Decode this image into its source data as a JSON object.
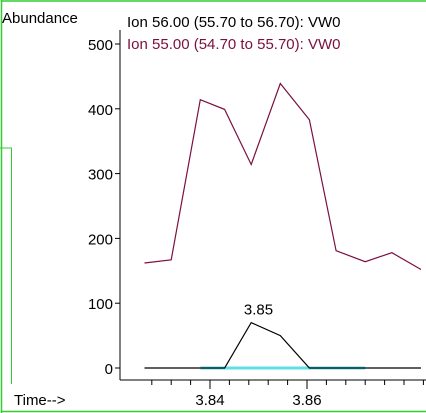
{
  "chart_data": {
    "type": "line",
    "ylabel": "Abundance",
    "xlabel": "Time-->",
    "xlim": [
      3.825,
      3.885
    ],
    "ylim": [
      -5,
      510
    ],
    "x_ticks": [
      3.84,
      3.86
    ],
    "y_ticks": [
      0,
      100,
      200,
      300,
      400,
      500
    ],
    "legend_position": "top",
    "peak_annotation": {
      "x": 3.85,
      "y": 70,
      "label": "3.85"
    },
    "series": [
      {
        "name": "Ion  56.00 (55.70 to 56.70): VW0",
        "color": "#000000",
        "x": [
          3.8265,
          3.838,
          3.843,
          3.8485,
          3.8545,
          3.8605,
          3.866,
          3.872,
          3.8775,
          3.8835
        ],
        "y": [
          0,
          0,
          0,
          70,
          50,
          0,
          0,
          0,
          0,
          0
        ]
      },
      {
        "name": "Ion  55.00 (54.70 to 55.70): VW0",
        "color": "#7a1040",
        "x": [
          3.8265,
          3.832,
          3.838,
          3.843,
          3.8485,
          3.8545,
          3.8605,
          3.866,
          3.872,
          3.8775,
          3.8835
        ],
        "y": [
          162,
          167,
          414,
          399,
          314,
          439,
          383,
          181,
          164,
          178,
          152
        ]
      },
      {
        "name": "baseline",
        "color": "#5fe0e8",
        "x": [
          3.838,
          3.872
        ],
        "y": [
          0,
          0
        ]
      }
    ]
  },
  "colors": {
    "frame_green": "#33cc33",
    "text": "#000000"
  }
}
